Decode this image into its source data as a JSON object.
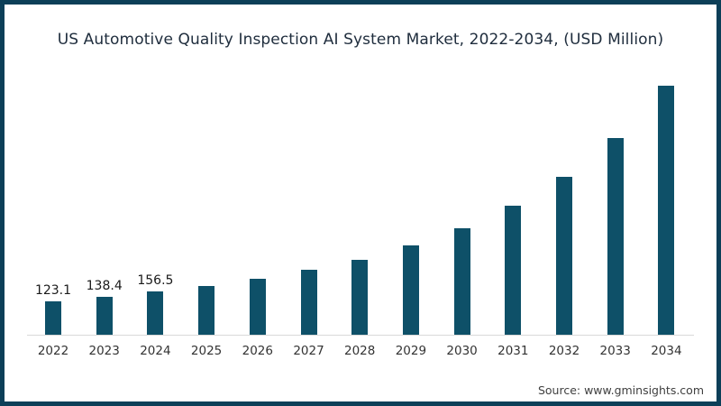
{
  "chart_data": {
    "type": "bar",
    "title": "US Automotive Quality Inspection AI System Market, 2022-2034, (USD Million)",
    "categories": [
      "2022",
      "2023",
      "2024",
      "2025",
      "2026",
      "2027",
      "2028",
      "2029",
      "2030",
      "2031",
      "2032",
      "2033",
      "2034"
    ],
    "values": [
      123.1,
      138.4,
      156.5,
      178,
      205,
      237,
      272,
      325,
      388,
      469,
      576,
      716,
      908
    ],
    "data_labels": [
      "123.1",
      "138.4",
      "156.5",
      null,
      null,
      null,
      null,
      null,
      null,
      null,
      null,
      null,
      null
    ],
    "xlabel": "",
    "ylabel": "",
    "ylim": [
      0,
      950
    ],
    "grid": false,
    "legend": false,
    "y_axis_visible": false,
    "source": "Source: www.gminsights.com",
    "colors": {
      "bar": "#0e5068",
      "frame": "#0c3f58",
      "axis": "#d9d9d9",
      "title": "#202e3e",
      "value_label": "#1a1a1a",
      "tick": "#333333",
      "source": "#3f3f3f",
      "background": "#ffffff"
    }
  }
}
